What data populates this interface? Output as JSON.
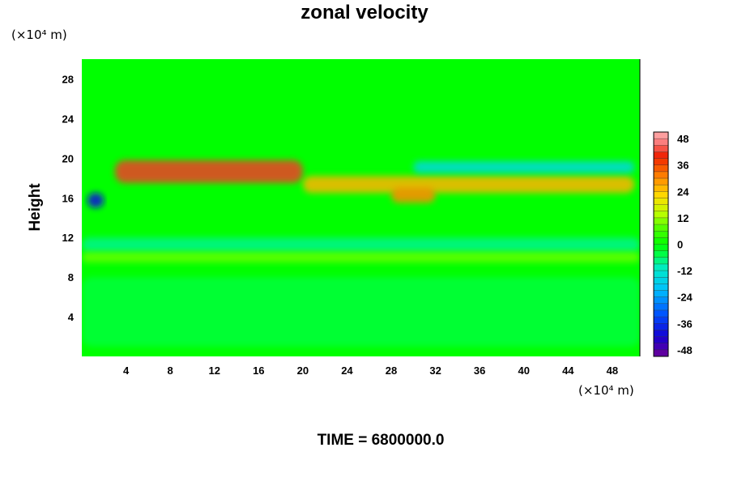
{
  "chart_data": {
    "type": "heatmap",
    "title": "zonal velocity",
    "ylabel": "Height",
    "y_unit": "(×10⁴ m)",
    "x_unit": "(×10⁴ m)",
    "x_ticks": [
      4,
      8,
      12,
      16,
      20,
      24,
      28,
      32,
      36,
      40,
      44,
      48
    ],
    "y_ticks": [
      4,
      8,
      12,
      16,
      20,
      24,
      28
    ],
    "xlim": [
      0,
      50.5
    ],
    "ylim": [
      0,
      30
    ],
    "colorbar": {
      "ticks": [
        48,
        36,
        24,
        12,
        0,
        -12,
        -24,
        -36,
        -48
      ],
      "range": [
        -51,
        51
      ]
    },
    "features": [
      {
        "x": [
          3,
          20
        ],
        "y": [
          17.5,
          19.8
        ],
        "value": 42
      },
      {
        "x": [
          20,
          50
        ],
        "y": [
          16.5,
          18.2
        ],
        "value": 26
      },
      {
        "x": [
          28,
          32
        ],
        "y": [
          15.5,
          17
        ],
        "value": 30
      },
      {
        "x": [
          0.5,
          2
        ],
        "y": [
          15,
          16.5
        ],
        "value": -40
      },
      {
        "x": [
          30,
          50
        ],
        "y": [
          18.5,
          19.7
        ],
        "value": -15
      },
      {
        "x": [
          0,
          50.5
        ],
        "y": [
          10.5,
          12
        ],
        "value": -8
      },
      {
        "x": [
          0,
          50.5
        ],
        "y": [
          9.5,
          10.5
        ],
        "value": 9
      },
      {
        "x": [
          0,
          50.5
        ],
        "y": [
          1,
          8
        ],
        "value": -4
      }
    ]
  },
  "footer": {
    "time_label": "TIME = ",
    "time_value": "6800000.0"
  }
}
